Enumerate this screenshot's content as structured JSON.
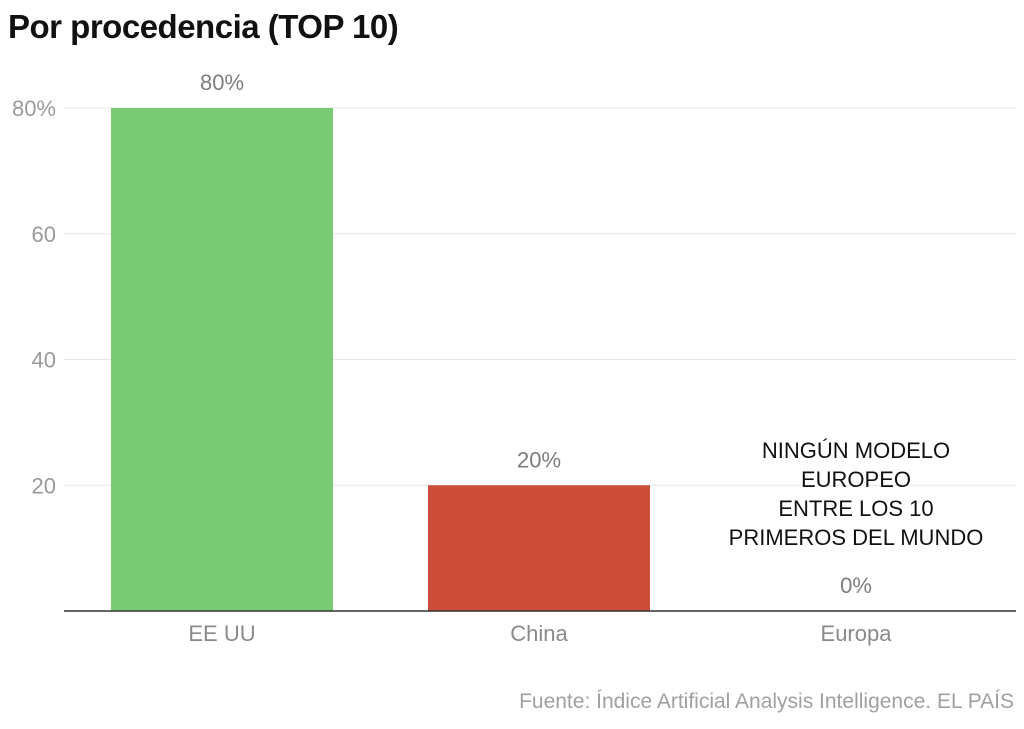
{
  "title": "Por procedencia (TOP 10)",
  "source": "Fuente: Índice Artificial Analysis Intelligence. EL PAÍS",
  "colors": {
    "bars": [
      "#7acb74",
      "#cc4d39",
      "#7acb74"
    ],
    "grid": "#e6e6e6",
    "baseline": "#333333"
  },
  "chart_data": {
    "type": "bar",
    "categories": [
      "EE UU",
      "China",
      "Europa"
    ],
    "values": [
      80,
      20,
      0
    ],
    "value_labels": [
      "80%",
      "20%",
      "0%"
    ],
    "yticks": [
      80,
      60,
      40,
      20
    ],
    "ytick_labels": [
      "80%",
      "60",
      "40",
      "20"
    ],
    "ylim": [
      0,
      80
    ],
    "grid": true,
    "annotation": {
      "category": "Europa",
      "lines": [
        "NINGÚN MODELO",
        "EUROPEO",
        "ENTRE LOS 10",
        "PRIMEROS DEL MUNDO"
      ]
    }
  }
}
